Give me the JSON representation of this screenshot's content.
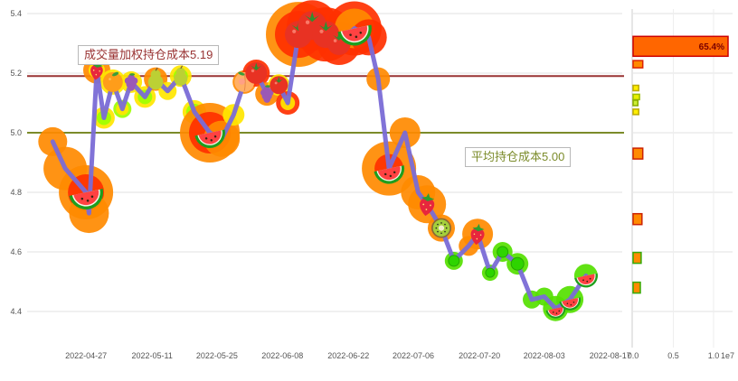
{
  "chart_data": {
    "type": "line",
    "title": "",
    "description": "price line with fruit markers and volume-by-price profile",
    "main": {
      "ylim": [
        4.4,
        5.4
      ],
      "grid": true,
      "yticks": [
        [
          "5.4",
          5.4
        ],
        [
          "5.2",
          5.2
        ],
        [
          "5.0",
          5.0
        ],
        [
          "4.8",
          4.8
        ],
        [
          "4.6",
          4.6
        ],
        [
          "4.4",
          4.4
        ]
      ],
      "xticks": [
        [
          "2022-04-27",
          0.099
        ],
        [
          "2022-05-11",
          0.21
        ],
        [
          "2022-05-25",
          0.319
        ],
        [
          "2022-06-08",
          0.429
        ],
        [
          "2022-06-22",
          0.54
        ],
        [
          "2022-07-06",
          0.649
        ],
        [
          "2022-07-20",
          0.76
        ],
        [
          "2022-08-03",
          0.869
        ],
        [
          "2022-08-17",
          0.98
        ]
      ],
      "ref_lines": [
        {
          "value": 5.19,
          "color": "#993333",
          "label": "成交量加权持仓成本5.19"
        },
        {
          "value": 5.0,
          "color": "#7b8b2a",
          "label": "平均持仓成本5.00"
        }
      ],
      "series": {
        "name": "price",
        "color": "#7a6bd6",
        "points": [
          {
            "f": 0.043,
            "p": 4.97,
            "b": [
              [
                "#ff8a00",
                16
              ]
            ]
          },
          {
            "f": 0.064,
            "p": 4.88,
            "b": [
              [
                "#ff8a00",
                24
              ]
            ]
          },
          {
            "f": 0.099,
            "p": 4.8,
            "m": "watermelon",
            "ms": 19,
            "b": [
              [
                "#ff8a00",
                30
              ],
              [
                "#ff3000",
                20
              ]
            ]
          },
          {
            "f": 0.104,
            "p": 4.73,
            "b": [
              [
                "#ff8a00",
                22
              ]
            ]
          },
          {
            "f": 0.117,
            "p": 5.21,
            "m": "strawberry",
            "ms": 11,
            "b": [
              [
                "#ff8a00",
                15
              ],
              [
                "#ffe600",
                9
              ]
            ]
          },
          {
            "f": 0.129,
            "p": 5.05,
            "b": [
              [
                "#ffe600",
                12
              ],
              [
                "#9dff00",
                8
              ]
            ]
          },
          {
            "f": 0.144,
            "p": 5.17,
            "m": "orange",
            "ms": 11,
            "b": [
              [
                "#ffe600",
                14
              ]
            ]
          },
          {
            "f": 0.16,
            "p": 5.08,
            "b": [
              [
                "#9dff00",
                10
              ],
              [
                "#ffe600",
                7
              ]
            ]
          },
          {
            "f": 0.175,
            "p": 5.17,
            "m": "grapes",
            "ms": 10,
            "b": [
              [
                "#ffe600",
                12
              ]
            ]
          },
          {
            "f": 0.198,
            "p": 5.12,
            "b": [
              [
                "#ffe600",
                12
              ],
              [
                "#9dff00",
                8
              ]
            ]
          },
          {
            "f": 0.216,
            "p": 5.18,
            "m": "pear",
            "ms": 11,
            "b": [
              [
                "#ff8a00",
                13
              ]
            ]
          },
          {
            "f": 0.236,
            "p": 5.14,
            "b": [
              [
                "#ffe600",
                10
              ]
            ]
          },
          {
            "f": 0.258,
            "p": 5.19,
            "m": "pear",
            "ms": 10,
            "b": [
              [
                "#ffe600",
                12
              ],
              [
                "#9dff00",
                8
              ]
            ]
          },
          {
            "f": 0.281,
            "p": 5.07,
            "b": [
              [
                "#ffe600",
                13
              ],
              [
                "#9dff00",
                9
              ]
            ]
          },
          {
            "f": 0.307,
            "p": 5.0,
            "m": "watermelon",
            "ms": 17,
            "b": [
              [
                "#ff8a00",
                33
              ],
              [
                "#ff3000",
                23
              ]
            ]
          },
          {
            "f": 0.327,
            "p": 4.98,
            "b": [
              [
                "#ff8a00",
                20
              ]
            ]
          },
          {
            "f": 0.347,
            "p": 5.06,
            "b": [
              [
                "#ffe600",
                12
              ]
            ]
          },
          {
            "f": 0.365,
            "p": 5.17,
            "m": "peach",
            "ms": 11,
            "b": [
              [
                "#ff8a00",
                13
              ]
            ]
          },
          {
            "f": 0.385,
            "p": 5.2,
            "m": "tomato",
            "ms": 12,
            "b": [
              [
                "#ff3000",
                15
              ],
              [
                "#ffe600",
                9
              ]
            ]
          },
          {
            "f": 0.403,
            "p": 5.13,
            "m": "grapes",
            "ms": 10,
            "b": [
              [
                "#ff8a00",
                13
              ]
            ]
          },
          {
            "f": 0.423,
            "p": 5.16,
            "m": "tomato",
            "ms": 10,
            "b": [
              [
                "#ffe600",
                12
              ]
            ]
          },
          {
            "f": 0.438,
            "p": 5.1,
            "b": [
              [
                "#ff3000",
                13
              ],
              [
                "#ffe600",
                8
              ]
            ]
          },
          {
            "f": 0.456,
            "p": 5.33,
            "m": "tomato",
            "ms": 15,
            "b": [
              [
                "#ff8a00",
                36
              ],
              [
                "#ff3000",
                26
              ]
            ]
          },
          {
            "f": 0.479,
            "p": 5.36,
            "m": "tomato",
            "ms": 16,
            "b": [
              [
                "#ff3000",
                28
              ]
            ]
          },
          {
            "f": 0.502,
            "p": 5.33,
            "m": "tomato",
            "ms": 15,
            "b": [
              [
                "#ff3000",
                30
              ]
            ]
          },
          {
            "f": 0.524,
            "p": 5.3,
            "m": "tomato",
            "ms": 13,
            "b": [
              [
                "#ff3000",
                24
              ]
            ]
          },
          {
            "f": 0.55,
            "p": 5.35,
            "m": "watermelon",
            "ms": 19,
            "b": [
              [
                "#ff3000",
                30
              ],
              [
                "#ff8a00",
                22
              ]
            ]
          },
          {
            "f": 0.574,
            "p": 5.32,
            "b": [
              [
                "#ff3000",
                20
              ]
            ]
          },
          {
            "f": 0.59,
            "p": 5.18,
            "b": [
              [
                "#ff8a00",
                13
              ]
            ]
          },
          {
            "f": 0.608,
            "p": 4.88,
            "m": "watermelon",
            "ms": 17,
            "b": [
              [
                "#ff8a00",
                30
              ],
              [
                "#ff3000",
                16
              ]
            ]
          },
          {
            "f": 0.635,
            "p": 5.0,
            "b": [
              [
                "#ff8a00",
                17
              ]
            ]
          },
          {
            "f": 0.657,
            "p": 4.8,
            "b": [
              [
                "#ff8a00",
                19
              ]
            ]
          },
          {
            "f": 0.672,
            "p": 4.76,
            "m": "strawberry",
            "ms": 13,
            "b": [
              [
                "#ff8a00",
                21
              ]
            ]
          },
          {
            "f": 0.696,
            "p": 4.68,
            "m": "kiwi",
            "ms": 11,
            "b": [
              [
                "#ff8a00",
                15
              ]
            ]
          },
          {
            "f": 0.717,
            "p": 4.57,
            "m": "greendot",
            "ms": 6,
            "b": [
              [
                "#55e000",
                10
              ]
            ]
          },
          {
            "f": 0.742,
            "p": 4.62,
            "b": [
              [
                "#ff8a00",
                11
              ]
            ]
          },
          {
            "f": 0.757,
            "p": 4.66,
            "m": "strawberry",
            "ms": 12,
            "b": [
              [
                "#ff8a00",
                17
              ]
            ]
          },
          {
            "f": 0.778,
            "p": 4.53,
            "m": "greendot",
            "ms": 5,
            "b": [
              [
                "#55e000",
                9
              ]
            ]
          },
          {
            "f": 0.799,
            "p": 4.6,
            "m": "greendot",
            "ms": 6,
            "b": [
              [
                "#55e000",
                11
              ]
            ]
          },
          {
            "f": 0.824,
            "p": 4.56,
            "m": "greendot",
            "ms": 7,
            "b": [
              [
                "#55e000",
                12
              ]
            ]
          },
          {
            "f": 0.848,
            "p": 4.44,
            "b": [
              [
                "#55e000",
                10
              ]
            ]
          },
          {
            "f": 0.869,
            "p": 4.45,
            "b": [
              [
                "#55e000",
                10
              ]
            ]
          },
          {
            "f": 0.888,
            "p": 4.41,
            "m": "watermelon",
            "ms": 11,
            "b": [
              [
                "#55e000",
                14
              ]
            ]
          },
          {
            "f": 0.912,
            "p": 4.44,
            "m": "watermelon",
            "ms": 12,
            "b": [
              [
                "#55e000",
                15
              ]
            ]
          },
          {
            "f": 0.939,
            "p": 4.52,
            "m": "watermelon",
            "ms": 13,
            "b": [
              [
                "#55e000",
                13
              ]
            ]
          }
        ]
      }
    },
    "volume_profile": {
      "xticks": [
        [
          "0.0",
          0.0
        ],
        [
          "0.5",
          0.5
        ],
        [
          "1.0",
          1.0
        ]
      ],
      "multiplier": "1e7",
      "unit": "1e7",
      "bars": [
        {
          "p": 5.29,
          "v": 1.18,
          "h": 22,
          "fill": "#ff6600",
          "stroke": "#cc0000",
          "label": "65.4%"
        },
        {
          "p": 5.23,
          "v": 0.12,
          "h": 8,
          "fill": "#ff8a00",
          "stroke": "#dd2200"
        },
        {
          "p": 5.15,
          "v": 0.07,
          "h": 6,
          "fill": "#ffee00",
          "stroke": "#bbaa00"
        },
        {
          "p": 5.12,
          "v": 0.08,
          "h": 6,
          "fill": "#e8f000",
          "stroke": "#99bb00"
        },
        {
          "p": 5.1,
          "v": 0.06,
          "h": 6,
          "fill": "#ccee33",
          "stroke": "#88aa00"
        },
        {
          "p": 5.07,
          "v": 0.07,
          "h": 6,
          "fill": "#ffee00",
          "stroke": "#bbaa00"
        },
        {
          "p": 4.93,
          "v": 0.12,
          "h": 12,
          "fill": "#ff8a00",
          "stroke": "#cc2200"
        },
        {
          "p": 4.71,
          "v": 0.11,
          "h": 12,
          "fill": "#ff8a00",
          "stroke": "#cc2200"
        },
        {
          "p": 4.58,
          "v": 0.1,
          "h": 12,
          "fill": "#ff8a00",
          "stroke": "#33aa00"
        },
        {
          "p": 4.48,
          "v": 0.09,
          "h": 12,
          "fill": "#ff8a00",
          "stroke": "#33aa00"
        }
      ],
      "top_bar_label": "65.4%",
      "label_color": "#7a0000"
    },
    "colors": {
      "grid": "#e0e0e0",
      "tick_text": "#555555",
      "spine": "#cccccc",
      "background": "#ffffff"
    }
  }
}
